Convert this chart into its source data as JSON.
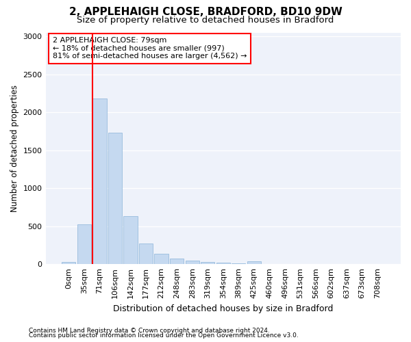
{
  "title1": "2, APPLEHAIGH CLOSE, BRADFORD, BD10 9DW",
  "title2": "Size of property relative to detached houses in Bradford",
  "xlabel": "Distribution of detached houses by size in Bradford",
  "ylabel": "Number of detached properties",
  "footnote1": "Contains HM Land Registry data © Crown copyright and database right 2024.",
  "footnote2": "Contains public sector information licensed under the Open Government Licence v3.0.",
  "bar_labels": [
    "0sqm",
    "35sqm",
    "71sqm",
    "106sqm",
    "142sqm",
    "177sqm",
    "212sqm",
    "248sqm",
    "283sqm",
    "319sqm",
    "354sqm",
    "389sqm",
    "425sqm",
    "460sqm",
    "496sqm",
    "531sqm",
    "566sqm",
    "602sqm",
    "637sqm",
    "673sqm",
    "708sqm"
  ],
  "bar_values": [
    25,
    525,
    2185,
    1730,
    635,
    270,
    140,
    75,
    45,
    28,
    20,
    15,
    35,
    5,
    2,
    0,
    0,
    0,
    0,
    0,
    0
  ],
  "bar_color": "#c5d9f0",
  "bar_edge_color": "#8ab4d8",
  "vline_color": "red",
  "vline_x_index": 2,
  "annotation_text": "2 APPLEHAIGH CLOSE: 79sqm\n← 18% of detached houses are smaller (997)\n81% of semi-detached houses are larger (4,562) →",
  "annotation_box_color": "white",
  "annotation_box_edge_color": "red",
  "ylim": [
    0,
    3050
  ],
  "yticks": [
    0,
    500,
    1000,
    1500,
    2000,
    2500,
    3000
  ],
  "background_color": "#eef2fa",
  "grid_color": "white",
  "title1_fontsize": 11,
  "title2_fontsize": 9.5,
  "xlabel_fontsize": 9,
  "ylabel_fontsize": 8.5,
  "tick_fontsize": 8,
  "annotation_fontsize": 8,
  "footnote_fontsize": 6.5
}
